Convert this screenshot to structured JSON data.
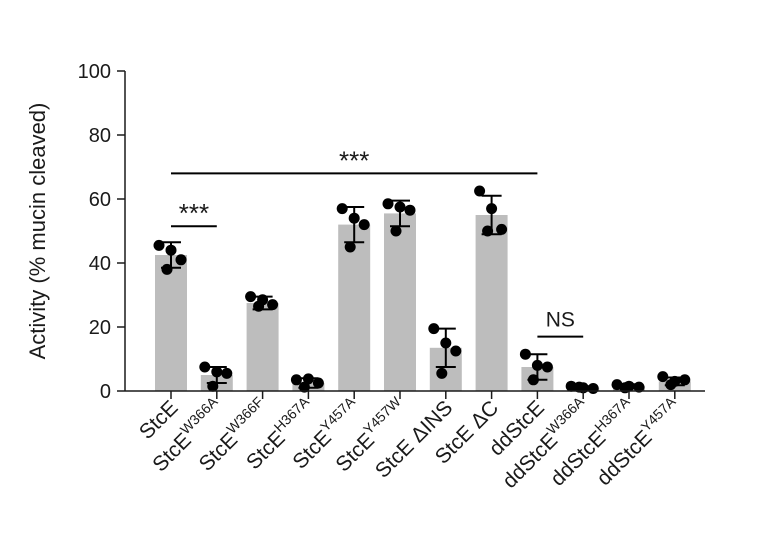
{
  "chart_data": {
    "type": "bar",
    "ylabel": "Activity (% mucin cleaved)",
    "ylim": [
      0,
      100
    ],
    "yticks": [
      0,
      20,
      40,
      60,
      80,
      100
    ],
    "grid": false,
    "bar_color": "#bdbdbd",
    "point_color": "#000000",
    "highlight_color": "#a3303a",
    "categories": [
      {
        "base": "StcE",
        "sup": ""
      },
      {
        "base": "StcE",
        "sup": "W366A"
      },
      {
        "base": "StcE",
        "sup": "W366F"
      },
      {
        "base": "StcE",
        "sup": "H367A"
      },
      {
        "base": "StcE",
        "sup": "Y457A"
      },
      {
        "base": "StcE",
        "sup": "Y457W"
      },
      {
        "base": "StcE ΔINS",
        "sup": ""
      },
      {
        "base": "StcE ΔC",
        "sup": ""
      },
      {
        "base": "ddStcE",
        "sup": ""
      },
      {
        "base": "ddStcE",
        "sup": "W366A",
        "highlight": true
      },
      {
        "base": "ddStcE",
        "sup": "H367A"
      },
      {
        "base": "ddStcE",
        "sup": "Y457A"
      }
    ],
    "values": [
      42.5,
      5,
      27.5,
      2.5,
      52,
      55.5,
      13.5,
      55,
      7.5,
      1,
      1.5,
      3
    ],
    "error_sd": [
      4,
      2.5,
      2,
      1.5,
      5.5,
      4,
      6,
      6,
      4,
      0.5,
      0.6,
      1.2
    ],
    "points": [
      [
        45.5,
        44,
        41,
        38
      ],
      [
        7.5,
        6,
        5.5,
        1.5
      ],
      [
        29.5,
        28.5,
        27,
        26.5
      ],
      [
        3.5,
        3.8,
        2.5,
        1.2
      ],
      [
        57,
        54,
        52,
        45
      ],
      [
        58.5,
        57.5,
        56.5,
        50
      ],
      [
        19.5,
        15,
        12.5,
        5.5
      ],
      [
        62.5,
        57,
        50.5,
        50
      ],
      [
        11.5,
        8,
        7.5,
        3.5
      ],
      [
        1.5,
        1,
        0.8,
        1.2
      ],
      [
        2,
        1.5,
        1.2,
        1
      ],
      [
        4.5,
        3,
        3.5,
        2
      ]
    ],
    "significance": [
      {
        "from": 0,
        "to": 8,
        "y": 68,
        "label": "***"
      },
      {
        "from": 0,
        "to": 1,
        "y": 51.5,
        "label": "***"
      },
      {
        "from": 8,
        "to": 9,
        "y": 17,
        "label": "NS"
      }
    ]
  }
}
